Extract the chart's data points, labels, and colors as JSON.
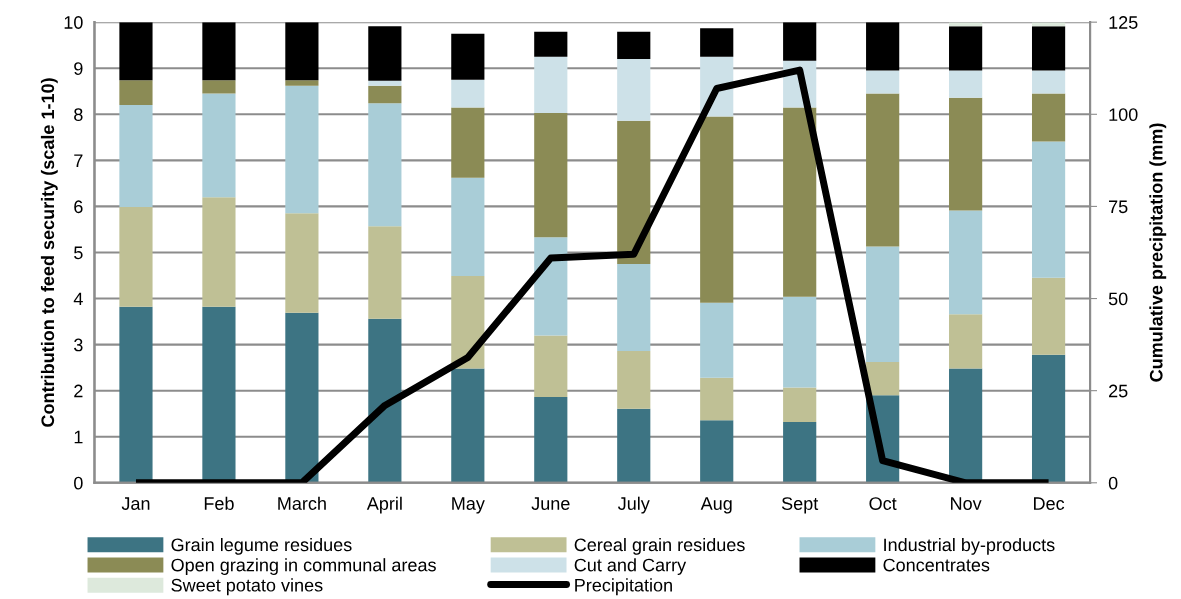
{
  "chart_data": {
    "type": "bar",
    "stacked": true,
    "categories": [
      "Jan",
      "Feb",
      "March",
      "April",
      "May",
      "June",
      "July",
      "Aug",
      "Sept",
      "Oct",
      "Nov",
      "Dec"
    ],
    "ylabel": "Contribution to feed security (scale 1-10)",
    "y2label": "Cumulative precipitation (mm)",
    "ylim": [
      0,
      10
    ],
    "yticks": [
      0,
      1,
      2,
      3,
      4,
      5,
      6,
      7,
      8,
      9,
      10
    ],
    "y2lim": [
      0,
      125
    ],
    "y2ticks": [
      0,
      25,
      50,
      75,
      100,
      125
    ],
    "grid": "y",
    "legend": "bottom",
    "series": [
      {
        "name": "Grain legume residues",
        "color": "#3d7483",
        "values": [
          3.82,
          3.82,
          3.69,
          3.56,
          2.48,
          1.86,
          1.61,
          1.36,
          1.32,
          1.9,
          2.48,
          2.78
        ]
      },
      {
        "name": "Cereal grain residues",
        "color": "#bfc095",
        "values": [
          2.17,
          2.38,
          2.16,
          2.01,
          2.01,
          1.34,
          1.25,
          0.92,
          0.75,
          0.72,
          1.18,
          1.67
        ]
      },
      {
        "name": "Industrial by-products",
        "color": "#a9cdd7",
        "values": [
          2.21,
          2.25,
          2.77,
          2.67,
          2.13,
          2.13,
          1.89,
          1.63,
          1.97,
          2.51,
          2.25,
          2.96
        ]
      },
      {
        "name": "Open grazing in communal areas",
        "color": "#8b8b55",
        "values": [
          0.54,
          0.29,
          0.12,
          0.38,
          1.53,
          2.7,
          3.11,
          4.04,
          4.11,
          3.32,
          2.45,
          1.04
        ]
      },
      {
        "name": "Cut and Carry",
        "color": "#cde1e8",
        "values": [
          null,
          null,
          null,
          0.11,
          0.6,
          1.22,
          1.34,
          1.3,
          1.01,
          0.5,
          0.59,
          0.5
        ]
      },
      {
        "name": "Concentrates",
        "color": "#000000",
        "values": [
          1.26,
          1.26,
          1.26,
          1.18,
          1.0,
          0.54,
          0.59,
          0.62,
          0.84,
          1.05,
          0.96,
          0.96
        ]
      },
      {
        "name": "Sweet potato vines",
        "color": "#dde9dc",
        "values": [
          null,
          null,
          null,
          null,
          null,
          null,
          null,
          null,
          null,
          null,
          0.08,
          0.08
        ]
      },
      {
        "name": "Precipitation",
        "type": "line",
        "axis": "y2",
        "color": "#000000",
        "values": [
          0,
          0,
          0,
          21,
          34,
          61,
          62,
          107,
          112,
          6,
          0,
          0
        ]
      }
    ]
  }
}
